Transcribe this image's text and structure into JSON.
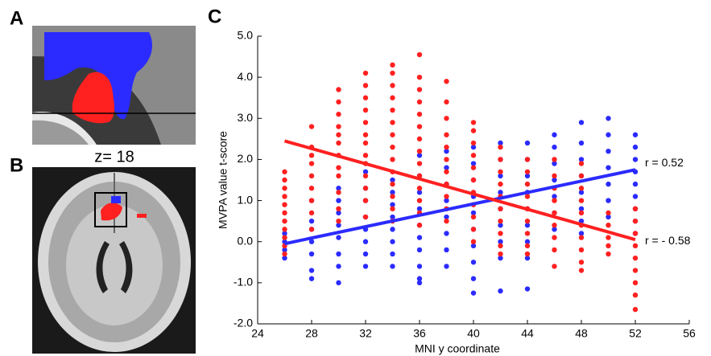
{
  "panel_labels": [
    "A",
    "B",
    "C"
  ],
  "slice_label": "z= 18",
  "chart_data": {
    "type": "scatter",
    "x_label": "MNI y coordinate",
    "y_label": "MVPA value t-score",
    "xlim": [
      24,
      56
    ],
    "xticks": [
      24,
      28,
      32,
      36,
      40,
      44,
      48,
      52,
      56
    ],
    "ylim": [
      -2,
      5
    ],
    "yticks": [
      {
        "value": -2,
        "label": "-2.0"
      },
      {
        "value": -1,
        "label": "-1.0"
      },
      {
        "value": 0,
        "label": "0.0"
      },
      {
        "value": 1,
        "label": "1.0"
      },
      {
        "value": 2,
        "label": "2.0"
      },
      {
        "value": 3,
        "label": "3.0"
      },
      {
        "value": 4,
        "label": "4.0"
      },
      {
        "value": 5,
        "label": "5.0"
      }
    ],
    "series": [
      {
        "color": "#2b2bff",
        "x": 26,
        "values": [
          0.2,
          0,
          -0.2,
          -0.4
        ]
      },
      {
        "color": "#2b2bff",
        "x": 28,
        "values": [
          1.0,
          0.5,
          0.3,
          0,
          -0.3,
          -0.7,
          -0.9
        ]
      },
      {
        "color": "#2b2bff",
        "x": 30,
        "values": [
          1.3,
          1.0,
          0.7,
          0.4,
          0.1,
          -0.3,
          -0.6,
          -1.0
        ]
      },
      {
        "color": "#2b2bff",
        "x": 32,
        "values": [
          1.7,
          1.3,
          1.0,
          0.6,
          0.3,
          0,
          -0.3,
          -0.6
        ]
      },
      {
        "color": "#2b2bff",
        "x": 34,
        "values": [
          1.5,
          1.2,
          0.9,
          0.6,
          0.3,
          0,
          -0.3,
          -0.6
        ]
      },
      {
        "color": "#2b2bff",
        "x": 36,
        "values": [
          2.1,
          1.6,
          1.2,
          0.8,
          0.4,
          0.1,
          -0.2,
          -0.6,
          -0.9,
          -1.0
        ]
      },
      {
        "color": "#2b2bff",
        "x": 38,
        "values": [
          2.2,
          1.8,
          1.4,
          1.0,
          0.6,
          0.2,
          -0.2,
          -0.6
        ]
      },
      {
        "color": "#2b2bff",
        "x": 40,
        "values": [
          2.3,
          1.9,
          1.5,
          1.1,
          0.7,
          0.3,
          -0.1,
          -0.5,
          -0.9,
          -1.25
        ]
      },
      {
        "color": "#2b2bff",
        "x": 42,
        "values": [
          2.4,
          2.0,
          1.6,
          1.2,
          0.8,
          0.4,
          0,
          -0.4,
          -1.2
        ]
      },
      {
        "color": "#2b2bff",
        "x": 44,
        "values": [
          2.4,
          2.0,
          1.6,
          1.2,
          0.8,
          0.4,
          0,
          -0.4,
          -1.15
        ]
      },
      {
        "color": "#2b2bff",
        "x": 46,
        "values": [
          2.6,
          2.3,
          1.9,
          1.5,
          1.1,
          0.7,
          0.3
        ]
      },
      {
        "color": "#2b2bff",
        "x": 48,
        "values": [
          2.9,
          2.4,
          2.0,
          1.6,
          1.2,
          0.8,
          0.5,
          0.2
        ]
      },
      {
        "color": "#2b2bff",
        "x": 50,
        "values": [
          3.0,
          2.6,
          2.2,
          1.8,
          1.4,
          1.0,
          0.6
        ]
      },
      {
        "color": "#2b2bff",
        "x": 52,
        "values": [
          2.6,
          2.3,
          2.0,
          1.7,
          1.4,
          1.1,
          0.8,
          0.5,
          0.2
        ]
      },
      {
        "color": "#ff2020",
        "x": 26,
        "values": [
          1.7,
          1.5,
          1.3,
          1.1,
          0.9,
          0.7,
          0.5,
          0.3,
          0.1,
          -0.1,
          -0.3
        ]
      },
      {
        "color": "#ff2020",
        "x": 28,
        "values": [
          2.8,
          2.3,
          2.1,
          1.9,
          1.6,
          1.3,
          1.0,
          0.7,
          0.3
        ]
      },
      {
        "color": "#ff2020",
        "x": 30,
        "values": [
          3.7,
          3.4,
          3.1,
          2.8,
          2.6,
          2.4,
          2.1,
          1.8,
          1.6,
          1.2,
          0.8,
          0.5
        ]
      },
      {
        "color": "#ff2020",
        "x": 32,
        "values": [
          4.1,
          3.8,
          3.5,
          3.2,
          2.9,
          2.6,
          2.4,
          2.1,
          1.9,
          1.6,
          1.3,
          1.0,
          0.6
        ]
      },
      {
        "color": "#ff2020",
        "x": 34,
        "values": [
          4.3,
          4.1,
          3.8,
          3.5,
          3.2,
          2.9,
          2.6,
          2.3,
          2.0,
          1.7,
          1.4,
          1.1,
          0.8,
          0.5
        ]
      },
      {
        "color": "#ff2020",
        "x": 36,
        "values": [
          4.55,
          4.0,
          3.7,
          3.4,
          3.1,
          2.8,
          2.5,
          2.2,
          1.9,
          1.6,
          1.3,
          1.0,
          0.7,
          0.4
        ]
      },
      {
        "color": "#ff2020",
        "x": 38,
        "values": [
          3.9,
          3.4,
          3.0,
          2.6,
          2.3,
          2.0,
          1.7,
          1.4,
          1.1,
          0.8,
          0.5
        ]
      },
      {
        "color": "#ff2020",
        "x": 40,
        "values": [
          2.9,
          2.7,
          2.4,
          2.1,
          1.8,
          1.5,
          1.2,
          0.9,
          0.6,
          0.3,
          0
        ]
      },
      {
        "color": "#ff2020",
        "x": 42,
        "values": [
          2.3,
          2.0,
          1.7,
          1.4,
          1.1,
          0.8,
          0.5,
          0.2,
          -0.1,
          -0.3
        ]
      },
      {
        "color": "#ff2020",
        "x": 44,
        "values": [
          2.0,
          1.7,
          1.4,
          1.1,
          0.8,
          0.5,
          0.2,
          -0.1,
          -0.3
        ]
      },
      {
        "color": "#ff2020",
        "x": 46,
        "values": [
          2.0,
          1.6,
          1.3,
          1.0,
          0.7,
          0.4,
          0.1,
          -0.2,
          -0.6
        ]
      },
      {
        "color": "#ff2020",
        "x": 48,
        "values": [
          1.9,
          1.6,
          1.3,
          1.0,
          0.7,
          0.4,
          0.1,
          -0.2,
          -0.5,
          -0.7
        ]
      },
      {
        "color": "#ff2020",
        "x": 50,
        "values": [
          0.7,
          0.4,
          0.1,
          -0.1,
          -0.3
        ]
      },
      {
        "color": "#ff2020",
        "x": 52,
        "values": [
          0.8,
          0.5,
          0.2,
          -0.1,
          -0.4,
          -0.7,
          -1.0,
          -1.3,
          -1.65
        ]
      }
    ],
    "fits": [
      {
        "label": "r = 0.52",
        "color": "#2b2bff",
        "x": [
          26,
          52
        ],
        "values": [
          -0.05,
          1.75
        ]
      },
      {
        "label": "r = - 0.58",
        "color": "#ff2020",
        "x": [
          26,
          52
        ],
        "values": [
          2.45,
          0.05
        ]
      }
    ]
  }
}
